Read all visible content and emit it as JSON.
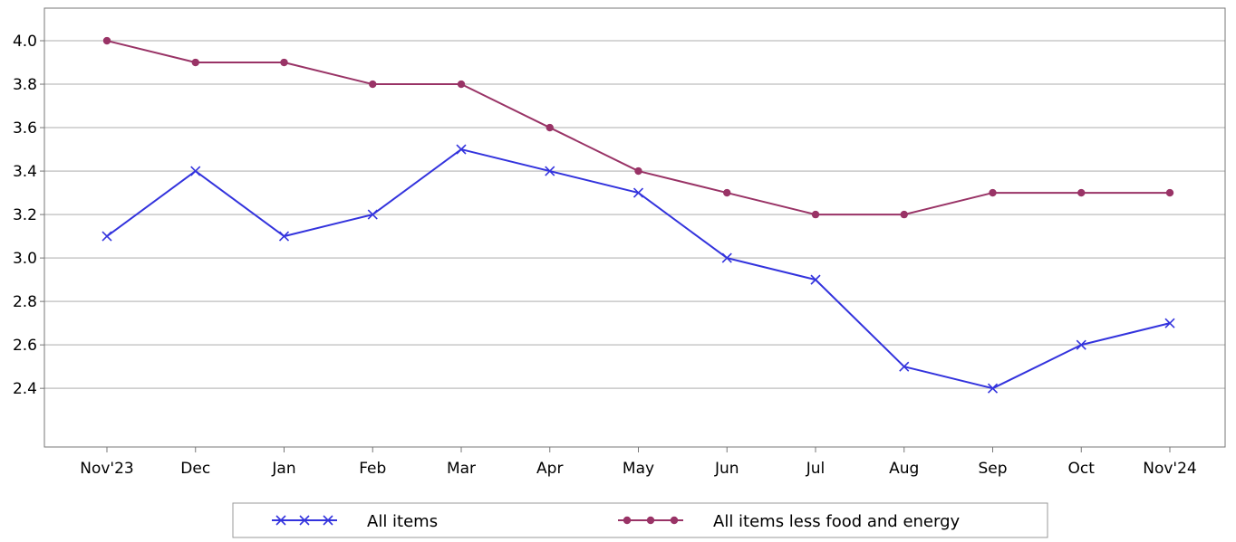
{
  "chart_data": {
    "type": "line",
    "categories": [
      "Nov'23",
      "Dec",
      "Jan",
      "Feb",
      "Mar",
      "Apr",
      "May",
      "Jun",
      "Jul",
      "Aug",
      "Sep",
      "Oct",
      "Nov'24"
    ],
    "series": [
      {
        "name": "All items",
        "color": "#3333dd",
        "marker": "x",
        "values": [
          3.1,
          3.4,
          3.1,
          3.2,
          3.5,
          3.4,
          3.3,
          3.0,
          2.9,
          2.5,
          2.4,
          2.6,
          2.7
        ]
      },
      {
        "name": "All items less food and energy",
        "color": "#993366",
        "marker": "circle",
        "values": [
          4.0,
          3.9,
          3.9,
          3.8,
          3.8,
          3.6,
          3.4,
          3.3,
          3.2,
          3.2,
          3.3,
          3.3,
          3.3
        ]
      }
    ],
    "ylim": [
      2.13,
      4.15
    ],
    "yticks": [
      "2.4",
      "2.6",
      "2.8",
      "3.0",
      "3.2",
      "3.4",
      "3.6",
      "3.8",
      "4.0"
    ],
    "grid": true,
    "legend_position": "bottom-center",
    "title": "",
    "xlabel": "",
    "ylabel": ""
  }
}
